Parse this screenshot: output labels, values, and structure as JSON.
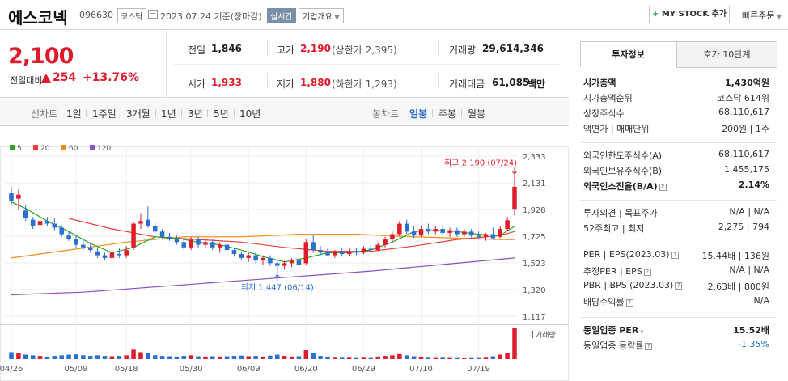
{
  "header": {
    "stock_name": "에스코넥",
    "stock_code": "096630",
    "market": "코스닥",
    "date_text": "2023.07.24 기준(장마감)",
    "realtime_label": "실시간",
    "company_overview_label": "기업개요",
    "my_stock_label": "MY STOCK 추가",
    "quick_order_label": "빠른주문"
  },
  "summary": {
    "current_price": "2,100",
    "diff_label": "전일대비",
    "diff_value": "254",
    "diff_rate": "+13.76%",
    "prev_close_label": "전일",
    "prev_close": "1,846",
    "high_label": "고가",
    "high": "2,190",
    "upper_limit": "(상한가 2,395)",
    "volume_label": "거래량",
    "volume": "29,614,346",
    "open_label": "시가",
    "open": "1,933",
    "low_label": "저가",
    "low": "1,880",
    "lower_limit": "(하한가 1,293)",
    "amount_label": "거래대금",
    "amount": "61,085",
    "amount_unit": "백만"
  },
  "chart_tabs": {
    "line_chart": "선차트",
    "periods": [
      "1일",
      "1주일",
      "3개월",
      "1년",
      "3년",
      "5년",
      "10년"
    ],
    "candle_chart": "봉차트",
    "candle_periods": [
      "일봉",
      "주봉",
      "월봉"
    ],
    "active_candle": "일봉"
  },
  "chart_data": {
    "type": "candlestick",
    "legend": [
      {
        "name": "5",
        "color": "#2aa22a"
      },
      {
        "name": "20",
        "color": "#e8413c"
      },
      {
        "name": "60",
        "color": "#f08c1a"
      },
      {
        "name": "120",
        "color": "#8a4fc0"
      }
    ],
    "y_ticks": [
      "2,333",
      "2,131",
      "1,928",
      "1,725",
      "1,523",
      "1,320",
      "1,117"
    ],
    "ylim": [
      1117,
      2333
    ],
    "x_ticks": [
      "04/26",
      "05/09",
      "05/18",
      "05/30",
      "06/09",
      "06/20",
      "06/29",
      "07/10",
      "07/19"
    ],
    "volume_label": "거래량",
    "annotations": {
      "high": "최고 2,190 (07/24)",
      "low": "최저 1,447 (06/14)"
    },
    "colors": {
      "up": "#e01c2c",
      "down": "#2b6fd1",
      "ma5": "#2aa22a",
      "ma20": "#e8413c",
      "ma60": "#f08c1a",
      "ma120": "#8a4fc0"
    },
    "candles": [
      {
        "o": 2050,
        "h": 2100,
        "l": 1960,
        "c": 1990,
        "v": 0.22
      },
      {
        "o": 2010,
        "h": 2080,
        "l": 1930,
        "c": 2040,
        "v": 0.18
      },
      {
        "o": 1920,
        "h": 1960,
        "l": 1840,
        "c": 1860,
        "v": 0.14
      },
      {
        "o": 1850,
        "h": 1870,
        "l": 1780,
        "c": 1800,
        "v": 0.12
      },
      {
        "o": 1810,
        "h": 1860,
        "l": 1780,
        "c": 1840,
        "v": 0.1
      },
      {
        "o": 1840,
        "h": 1870,
        "l": 1800,
        "c": 1820,
        "v": 0.08
      },
      {
        "o": 1820,
        "h": 1860,
        "l": 1770,
        "c": 1790,
        "v": 0.1
      },
      {
        "o": 1790,
        "h": 1810,
        "l": 1720,
        "c": 1740,
        "v": 0.12
      },
      {
        "o": 1730,
        "h": 1760,
        "l": 1690,
        "c": 1700,
        "v": 0.14
      },
      {
        "o": 1700,
        "h": 1730,
        "l": 1640,
        "c": 1660,
        "v": 0.15
      },
      {
        "o": 1660,
        "h": 1700,
        "l": 1620,
        "c": 1640,
        "v": 0.12
      },
      {
        "o": 1640,
        "h": 1680,
        "l": 1600,
        "c": 1620,
        "v": 0.1
      },
      {
        "o": 1610,
        "h": 1640,
        "l": 1560,
        "c": 1580,
        "v": 0.12
      },
      {
        "o": 1580,
        "h": 1600,
        "l": 1540,
        "c": 1560,
        "v": 0.1
      },
      {
        "o": 1560,
        "h": 1620,
        "l": 1540,
        "c": 1600,
        "v": 0.09
      },
      {
        "o": 1590,
        "h": 1640,
        "l": 1560,
        "c": 1580,
        "v": 0.1
      },
      {
        "o": 1580,
        "h": 1650,
        "l": 1560,
        "c": 1620,
        "v": 0.12
      },
      {
        "o": 1640,
        "h": 1830,
        "l": 1620,
        "c": 1820,
        "v": 0.3
      },
      {
        "o": 1820,
        "h": 1900,
        "l": 1780,
        "c": 1840,
        "v": 0.22
      },
      {
        "o": 1850,
        "h": 1950,
        "l": 1790,
        "c": 1800,
        "v": 0.18
      },
      {
        "o": 1800,
        "h": 1830,
        "l": 1740,
        "c": 1760,
        "v": 0.12
      },
      {
        "o": 1760,
        "h": 1780,
        "l": 1700,
        "c": 1720,
        "v": 0.1
      },
      {
        "o": 1720,
        "h": 1750,
        "l": 1690,
        "c": 1700,
        "v": 0.09
      },
      {
        "o": 1700,
        "h": 1730,
        "l": 1660,
        "c": 1680,
        "v": 0.08
      },
      {
        "o": 1680,
        "h": 1700,
        "l": 1620,
        "c": 1640,
        "v": 0.1
      },
      {
        "o": 1640,
        "h": 1720,
        "l": 1620,
        "c": 1700,
        "v": 0.12
      },
      {
        "o": 1700,
        "h": 1720,
        "l": 1640,
        "c": 1660,
        "v": 0.09
      },
      {
        "o": 1660,
        "h": 1700,
        "l": 1640,
        "c": 1680,
        "v": 0.08
      },
      {
        "o": 1680,
        "h": 1700,
        "l": 1620,
        "c": 1640,
        "v": 0.09
      },
      {
        "o": 1640,
        "h": 1680,
        "l": 1600,
        "c": 1660,
        "v": 0.08
      },
      {
        "o": 1660,
        "h": 1680,
        "l": 1600,
        "c": 1620,
        "v": 0.09
      },
      {
        "o": 1620,
        "h": 1640,
        "l": 1570,
        "c": 1590,
        "v": 0.1
      },
      {
        "o": 1590,
        "h": 1610,
        "l": 1540,
        "c": 1560,
        "v": 0.11
      },
      {
        "o": 1560,
        "h": 1600,
        "l": 1530,
        "c": 1580,
        "v": 0.09
      },
      {
        "o": 1580,
        "h": 1600,
        "l": 1520,
        "c": 1540,
        "v": 0.1
      },
      {
        "o": 1540,
        "h": 1580,
        "l": 1510,
        "c": 1560,
        "v": 0.08
      },
      {
        "o": 1560,
        "h": 1580,
        "l": 1500,
        "c": 1520,
        "v": 0.11
      },
      {
        "o": 1520,
        "h": 1550,
        "l": 1447,
        "c": 1500,
        "v": 0.14
      },
      {
        "o": 1500,
        "h": 1540,
        "l": 1470,
        "c": 1520,
        "v": 0.1
      },
      {
        "o": 1520,
        "h": 1560,
        "l": 1490,
        "c": 1540,
        "v": 0.08
      },
      {
        "o": 1540,
        "h": 1570,
        "l": 1500,
        "c": 1510,
        "v": 0.09
      },
      {
        "o": 1520,
        "h": 1700,
        "l": 1510,
        "c": 1680,
        "v": 0.28
      },
      {
        "o": 1680,
        "h": 1730,
        "l": 1600,
        "c": 1620,
        "v": 0.2
      },
      {
        "o": 1620,
        "h": 1650,
        "l": 1580,
        "c": 1600,
        "v": 0.1
      },
      {
        "o": 1600,
        "h": 1630,
        "l": 1570,
        "c": 1580,
        "v": 0.08
      },
      {
        "o": 1580,
        "h": 1620,
        "l": 1560,
        "c": 1610,
        "v": 0.07
      },
      {
        "o": 1610,
        "h": 1630,
        "l": 1570,
        "c": 1590,
        "v": 0.07
      },
      {
        "o": 1590,
        "h": 1630,
        "l": 1570,
        "c": 1610,
        "v": 0.07
      },
      {
        "o": 1610,
        "h": 1640,
        "l": 1580,
        "c": 1600,
        "v": 0.06
      },
      {
        "o": 1600,
        "h": 1650,
        "l": 1590,
        "c": 1630,
        "v": 0.07
      },
      {
        "o": 1630,
        "h": 1660,
        "l": 1600,
        "c": 1620,
        "v": 0.06
      },
      {
        "o": 1620,
        "h": 1680,
        "l": 1610,
        "c": 1660,
        "v": 0.08
      },
      {
        "o": 1660,
        "h": 1720,
        "l": 1640,
        "c": 1700,
        "v": 0.1
      },
      {
        "o": 1700,
        "h": 1760,
        "l": 1680,
        "c": 1740,
        "v": 0.12
      },
      {
        "o": 1740,
        "h": 1840,
        "l": 1720,
        "c": 1820,
        "v": 0.16
      },
      {
        "o": 1820,
        "h": 1850,
        "l": 1740,
        "c": 1760,
        "v": 0.12
      },
      {
        "o": 1760,
        "h": 1800,
        "l": 1710,
        "c": 1730,
        "v": 0.09
      },
      {
        "o": 1730,
        "h": 1800,
        "l": 1720,
        "c": 1780,
        "v": 0.08
      },
      {
        "o": 1780,
        "h": 1820,
        "l": 1740,
        "c": 1760,
        "v": 0.07
      },
      {
        "o": 1760,
        "h": 1800,
        "l": 1740,
        "c": 1780,
        "v": 0.06
      },
      {
        "o": 1780,
        "h": 1800,
        "l": 1730,
        "c": 1750,
        "v": 0.07
      },
      {
        "o": 1750,
        "h": 1790,
        "l": 1720,
        "c": 1770,
        "v": 0.06
      },
      {
        "o": 1770,
        "h": 1790,
        "l": 1720,
        "c": 1740,
        "v": 0.06
      },
      {
        "o": 1740,
        "h": 1780,
        "l": 1720,
        "c": 1760,
        "v": 0.05
      },
      {
        "o": 1760,
        "h": 1780,
        "l": 1710,
        "c": 1730,
        "v": 0.06
      },
      {
        "o": 1730,
        "h": 1760,
        "l": 1700,
        "c": 1720,
        "v": 0.06
      },
      {
        "o": 1720,
        "h": 1750,
        "l": 1690,
        "c": 1740,
        "v": 0.07
      },
      {
        "o": 1740,
        "h": 1790,
        "l": 1700,
        "c": 1710,
        "v": 0.09
      },
      {
        "o": 1720,
        "h": 1800,
        "l": 1710,
        "c": 1780,
        "v": 0.14
      },
      {
        "o": 1780,
        "h": 1870,
        "l": 1760,
        "c": 1846,
        "v": 0.2
      },
      {
        "o": 1933,
        "h": 2190,
        "l": 1880,
        "c": 2100,
        "v": 1.0
      }
    ],
    "ma5": [
      [
        0,
        1985
      ],
      [
        2,
        1935
      ],
      [
        5,
        1840
      ],
      [
        8,
        1760
      ],
      [
        11,
        1670
      ],
      [
        14,
        1600
      ],
      [
        17,
        1640
      ],
      [
        20,
        1720
      ],
      [
        23,
        1710
      ],
      [
        26,
        1680
      ],
      [
        29,
        1660
      ],
      [
        32,
        1620
      ],
      [
        35,
        1570
      ],
      [
        38,
        1530
      ],
      [
        41,
        1560
      ],
      [
        44,
        1600
      ],
      [
        47,
        1600
      ],
      [
        50,
        1620
      ],
      [
        53,
        1680
      ],
      [
        56,
        1760
      ],
      [
        59,
        1770
      ],
      [
        62,
        1760
      ],
      [
        65,
        1740
      ],
      [
        68,
        1730
      ],
      [
        70,
        1800
      ]
    ],
    "ma20": [
      [
        8,
        1860
      ],
      [
        14,
        1780
      ],
      [
        20,
        1720
      ],
      [
        26,
        1700
      ],
      [
        32,
        1680
      ],
      [
        38,
        1640
      ],
      [
        44,
        1610
      ],
      [
        50,
        1610
      ],
      [
        56,
        1650
      ],
      [
        62,
        1700
      ],
      [
        68,
        1730
      ],
      [
        70,
        1760
      ]
    ],
    "ma60": [
      [
        0,
        1560
      ],
      [
        8,
        1620
      ],
      [
        16,
        1680
      ],
      [
        24,
        1720
      ],
      [
        32,
        1720
      ],
      [
        40,
        1740
      ],
      [
        48,
        1740
      ],
      [
        56,
        1720
      ],
      [
        62,
        1710
      ],
      [
        68,
        1700
      ],
      [
        70,
        1700
      ]
    ],
    "ma120": [
      [
        0,
        1280
      ],
      [
        10,
        1300
      ],
      [
        20,
        1340
      ],
      [
        30,
        1380
      ],
      [
        40,
        1420
      ],
      [
        50,
        1460
      ],
      [
        60,
        1510
      ],
      [
        70,
        1560
      ]
    ]
  },
  "right_panel": {
    "tab_invest": "투자정보",
    "tab_quote": "호가 10단계",
    "rows1": [
      {
        "k": "시가총액",
        "v": "1,430억원",
        "bold": true
      },
      {
        "k": "시가총액순위",
        "v": "코스닥 614위"
      },
      {
        "k": "상장주식수",
        "v": "68,110,617"
      },
      {
        "k": "액면가 | 매매단위",
        "v": "200원 | 1주"
      }
    ],
    "rows2": [
      {
        "k": "외국인한도주식수(A)",
        "v": "68,110,617"
      },
      {
        "k": "외국인보유주식수(B)",
        "v": "1,455,175"
      },
      {
        "k": "외국인소진율(B/A)",
        "v": "2.14%",
        "bold": true,
        "q": true
      }
    ],
    "rows3": [
      {
        "k": "투자의견 | 목표주가",
        "v": "N/A | N/A"
      },
      {
        "k": "52주최고 | 최저",
        "v": "2,275 | 794"
      }
    ],
    "rows4": [
      {
        "k": "PER | EPS(2023.03)",
        "v": "15.44배 | 136원",
        "q": true
      },
      {
        "k": "추정PER | EPS",
        "v": "N/A | N/A",
        "q": true
      },
      {
        "k": "PBR | BPS (2023.03)",
        "v": "2.63배 | 800원",
        "q": true
      },
      {
        "k": "배당수익률",
        "v": "N/A",
        "q": true
      }
    ],
    "rows5": [
      {
        "k": "동일업종 PER",
        "v": "15.52배",
        "bold": true,
        "car": true
      },
      {
        "k": "동일업종 등락률",
        "v": "-1.35%",
        "blue": true,
        "q": true
      }
    ]
  }
}
